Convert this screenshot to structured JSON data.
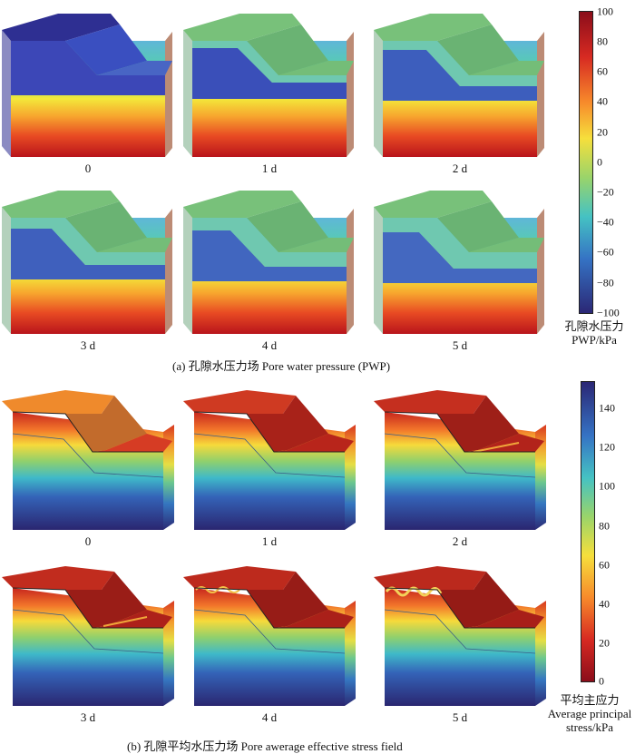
{
  "panel_a": {
    "caption": "(a) 孔隙水压力场 Pore water pressure (PWP)",
    "days": [
      "0",
      "1 d",
      "2 d",
      "3 d",
      "4 d",
      "5 d"
    ],
    "colorbar": {
      "ticks": [
        "100",
        "80",
        "60",
        "40",
        "20",
        "0",
        "−20",
        "−40",
        "−60",
        "−80",
        "−100"
      ],
      "title_cn": "孔隙水压力",
      "title_en": "PWP/kPa"
    }
  },
  "panel_b": {
    "caption": "(b) 孔隙平均水压力场 Pore awerage effective stress field",
    "days": [
      "0",
      "1 d",
      "2 d",
      "3 d",
      "4 d",
      "5 d"
    ],
    "colorbar": {
      "ticks": [
        "140",
        "120",
        "100",
        "80",
        "60",
        "40",
        "20",
        "0"
      ],
      "title_cn": "平均主应力",
      "title_en1": "Average principal",
      "title_en2": "stress/kPa"
    }
  }
}
